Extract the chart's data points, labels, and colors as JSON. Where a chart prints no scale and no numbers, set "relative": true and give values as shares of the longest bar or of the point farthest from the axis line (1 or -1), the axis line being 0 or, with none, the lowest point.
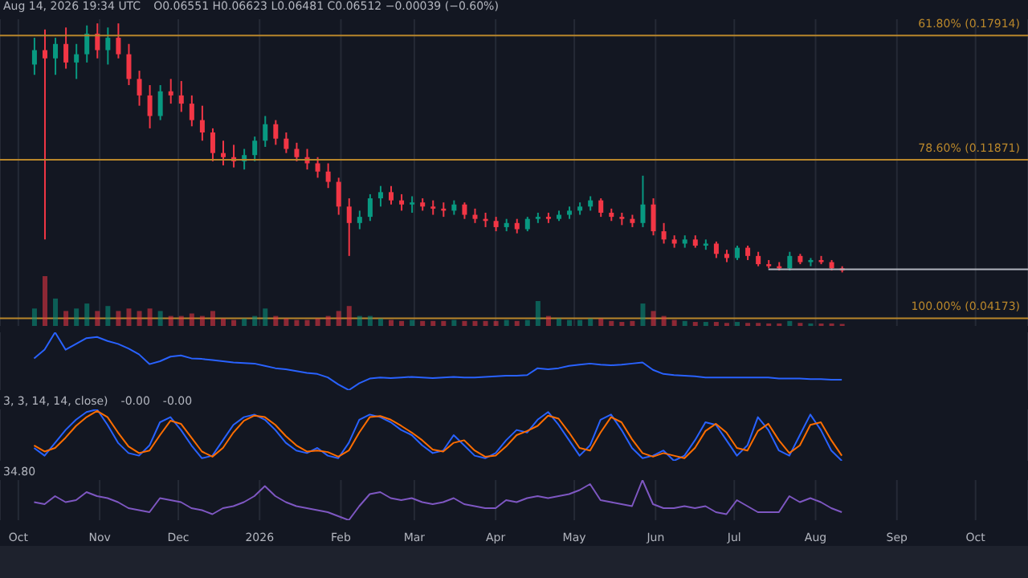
{
  "chart_data": [
    {
      "type": "candlestick",
      "annotations": [
        "Aug 14, 2026 19:34 UTC",
        "O0.06551 H0.06623 L0.06481 C0.06512 −0.00039 (−0.60%)"
      ],
      "x": [
        "2025-10-07",
        "2025-10-11",
        "2025-10-15",
        "2025-10-19",
        "2025-10-23",
        "2025-10-27",
        "2025-10-31",
        "2025-11-04",
        "2025-11-08",
        "2025-11-12",
        "2025-11-16",
        "2025-11-20",
        "2025-11-24",
        "2025-11-28",
        "2025-12-02",
        "2025-12-06",
        "2025-12-10",
        "2025-12-14",
        "2025-12-18",
        "2025-12-22",
        "2025-12-26",
        "2025-12-30",
        "2026-01-03",
        "2026-01-07",
        "2026-01-11",
        "2026-01-15",
        "2026-01-19",
        "2026-01-23",
        "2026-01-27",
        "2026-01-31",
        "2026-02-04",
        "2026-02-08",
        "2026-02-12",
        "2026-02-16",
        "2026-02-20",
        "2026-02-24",
        "2026-02-28",
        "2026-03-04",
        "2026-03-08",
        "2026-03-12",
        "2026-03-16",
        "2026-03-20",
        "2026-03-24",
        "2026-03-28",
        "2026-04-01",
        "2026-04-05",
        "2026-04-09",
        "2026-04-13",
        "2026-04-17",
        "2026-04-21",
        "2026-04-25",
        "2026-04-29",
        "2026-05-03",
        "2026-05-07",
        "2026-05-11",
        "2026-05-15",
        "2026-05-19",
        "2026-05-23",
        "2026-05-27",
        "2026-05-31",
        "2026-06-04",
        "2026-06-08",
        "2026-06-12",
        "2026-06-16",
        "2026-06-20",
        "2026-06-24",
        "2026-06-28",
        "2026-07-02",
        "2026-07-06",
        "2026-07-10",
        "2026-07-14",
        "2026-07-18",
        "2026-07-22",
        "2026-07-26",
        "2026-07-30",
        "2026-08-03",
        "2026-08-07",
        "2026-08-11"
      ],
      "ohlc": [
        [
          0.165,
          0.178,
          0.16,
          0.172
        ],
        [
          0.172,
          0.182,
          0.08,
          0.168
        ],
        [
          0.168,
          0.178,
          0.16,
          0.175
        ],
        [
          0.175,
          0.183,
          0.163,
          0.166
        ],
        [
          0.166,
          0.175,
          0.158,
          0.17
        ],
        [
          0.17,
          0.184,
          0.166,
          0.18
        ],
        [
          0.18,
          0.185,
          0.168,
          0.172
        ],
        [
          0.172,
          0.183,
          0.165,
          0.178
        ],
        [
          0.178,
          0.185,
          0.168,
          0.17
        ],
        [
          0.17,
          0.175,
          0.155,
          0.158
        ],
        [
          0.158,
          0.162,
          0.145,
          0.15
        ],
        [
          0.15,
          0.155,
          0.134,
          0.14
        ],
        [
          0.14,
          0.155,
          0.138,
          0.152
        ],
        [
          0.152,
          0.158,
          0.146,
          0.15
        ],
        [
          0.15,
          0.157,
          0.142,
          0.146
        ],
        [
          0.146,
          0.15,
          0.135,
          0.138
        ],
        [
          0.138,
          0.145,
          0.128,
          0.132
        ],
        [
          0.132,
          0.134,
          0.118,
          0.122
        ],
        [
          0.122,
          0.128,
          0.116,
          0.12
        ],
        [
          0.12,
          0.126,
          0.115,
          0.118
        ],
        [
          0.118,
          0.124,
          0.114,
          0.121
        ],
        [
          0.121,
          0.13,
          0.118,
          0.128
        ],
        [
          0.128,
          0.14,
          0.125,
          0.136
        ],
        [
          0.136,
          0.138,
          0.126,
          0.129
        ],
        [
          0.129,
          0.132,
          0.122,
          0.124
        ],
        [
          0.124,
          0.127,
          0.118,
          0.12
        ],
        [
          0.12,
          0.124,
          0.114,
          0.117
        ],
        [
          0.117,
          0.12,
          0.11,
          0.113
        ],
        [
          0.113,
          0.117,
          0.105,
          0.108
        ],
        [
          0.108,
          0.11,
          0.092,
          0.096
        ],
        [
          0.096,
          0.1,
          0.072,
          0.088
        ],
        [
          0.088,
          0.094,
          0.085,
          0.091
        ],
        [
          0.091,
          0.102,
          0.089,
          0.1
        ],
        [
          0.1,
          0.106,
          0.096,
          0.103
        ],
        [
          0.103,
          0.106,
          0.097,
          0.099
        ],
        [
          0.099,
          0.102,
          0.094,
          0.097
        ],
        [
          0.097,
          0.101,
          0.093,
          0.098
        ],
        [
          0.098,
          0.1,
          0.094,
          0.096
        ],
        [
          0.096,
          0.099,
          0.092,
          0.095
        ],
        [
          0.095,
          0.098,
          0.091,
          0.094
        ],
        [
          0.094,
          0.099,
          0.092,
          0.097
        ],
        [
          0.097,
          0.098,
          0.09,
          0.092
        ],
        [
          0.092,
          0.095,
          0.088,
          0.09
        ],
        [
          0.09,
          0.093,
          0.086,
          0.089
        ],
        [
          0.089,
          0.091,
          0.084,
          0.086
        ],
        [
          0.086,
          0.09,
          0.084,
          0.088
        ],
        [
          0.088,
          0.09,
          0.083,
          0.085
        ],
        [
          0.085,
          0.091,
          0.084,
          0.09
        ],
        [
          0.09,
          0.093,
          0.088,
          0.091
        ],
        [
          0.091,
          0.093,
          0.088,
          0.09
        ],
        [
          0.09,
          0.094,
          0.089,
          0.092
        ],
        [
          0.092,
          0.096,
          0.09,
          0.094
        ],
        [
          0.094,
          0.098,
          0.092,
          0.096
        ],
        [
          0.096,
          0.101,
          0.094,
          0.099
        ],
        [
          0.099,
          0.1,
          0.091,
          0.093
        ],
        [
          0.093,
          0.095,
          0.089,
          0.091
        ],
        [
          0.091,
          0.093,
          0.087,
          0.09
        ],
        [
          0.09,
          0.092,
          0.086,
          0.088
        ],
        [
          0.088,
          0.111,
          0.086,
          0.097
        ],
        [
          0.097,
          0.1,
          0.082,
          0.084
        ],
        [
          0.084,
          0.088,
          0.078,
          0.08
        ],
        [
          0.08,
          0.082,
          0.076,
          0.078
        ],
        [
          0.078,
          0.082,
          0.076,
          0.08
        ],
        [
          0.08,
          0.082,
          0.076,
          0.077
        ],
        [
          0.077,
          0.08,
          0.075,
          0.078
        ],
        [
          0.078,
          0.079,
          0.071,
          0.073
        ],
        [
          0.073,
          0.075,
          0.069,
          0.071
        ],
        [
          0.071,
          0.077,
          0.07,
          0.076
        ],
        [
          0.076,
          0.077,
          0.07,
          0.072
        ],
        [
          0.072,
          0.074,
          0.067,
          0.068
        ],
        [
          0.068,
          0.07,
          0.066,
          0.067
        ],
        [
          0.067,
          0.069,
          0.065,
          0.066
        ],
        [
          0.066,
          0.074,
          0.065,
          0.072
        ],
        [
          0.072,
          0.073,
          0.068,
          0.069
        ],
        [
          0.069,
          0.071,
          0.067,
          0.07
        ],
        [
          0.07,
          0.072,
          0.068,
          0.069
        ],
        [
          0.069,
          0.07,
          0.065,
          0.066
        ],
        [
          0.066,
          0.067,
          0.064,
          0.065
        ]
      ],
      "colors": [
        "#089981",
        "#f23645",
        "#089981",
        "#f23645",
        "#089981",
        "#089981",
        "#f23645",
        "#089981",
        "#f23645",
        "#f23645",
        "#f23645",
        "#f23645",
        "#089981",
        "#f23645",
        "#f23645",
        "#f23645",
        "#f23645",
        "#f23645",
        "#f23645",
        "#f23645",
        "#089981",
        "#089981",
        "#089981",
        "#f23645",
        "#f23645",
        "#f23645",
        "#f23645",
        "#f23645",
        "#f23645",
        "#f23645",
        "#f23645",
        "#089981",
        "#089981",
        "#089981",
        "#f23645",
        "#f23645",
        "#089981",
        "#f23645",
        "#f23645",
        "#f23645",
        "#089981",
        "#f23645",
        "#f23645",
        "#f23645",
        "#f23645",
        "#089981",
        "#f23645",
        "#089981",
        "#089981",
        "#f23645",
        "#089981",
        "#089981",
        "#089981",
        "#089981",
        "#f23645",
        "#f23645",
        "#f23645",
        "#f23645",
        "#089981",
        "#f23645",
        "#f23645",
        "#f23645",
        "#089981",
        "#f23645",
        "#089981",
        "#f23645",
        "#f23645",
        "#089981",
        "#f23645",
        "#f23645",
        "#f23645",
        "#f23645",
        "#089981",
        "#f23645",
        "#089981",
        "#f23645",
        "#f23645",
        "#f23645"
      ],
      "series": [
        {
          "type": "line",
          "color": "#b2b5be",
          "x": [
            "2026-07-14",
            "2026-10-21"
          ],
          "values": [
            0.0655,
            0.0655
          ]
        }
      ],
      "ylim": [
        0.038,
        0.187
      ],
      "xlim": [
        "2025-09-24",
        "2026-10-21"
      ],
      "xticks": [
        {
          "value": "2025-10-01",
          "label": null
        },
        {
          "value": "2025-11-01",
          "label": null
        },
        {
          "value": "2025-12-01",
          "label": null
        },
        {
          "value": "2026-01-01",
          "label": null
        },
        {
          "value": "2026-02-01",
          "label": null
        },
        {
          "value": "2026-03-01",
          "label": null
        },
        {
          "value": "2026-04-01",
          "label": null
        },
        {
          "value": "2026-05-01",
          "label": null
        },
        {
          "value": "2026-06-01",
          "label": null
        },
        {
          "value": "2026-07-01",
          "label": null
        },
        {
          "value": "2026-08-01",
          "label": null
        },
        {
          "value": "2026-09-01",
          "label": null
        },
        {
          "value": "2026-10-01",
          "label": null
        }
      ],
      "ref_lines": [
        {
          "axis": "y",
          "value": 0.17914,
          "label": "61.80% (0.17914)",
          "color": "#b8862b"
        },
        {
          "axis": "y",
          "value": 0.11871,
          "label": "78.60% (0.11871)",
          "color": "#b8862b"
        },
        {
          "axis": "y",
          "value": 0.04173,
          "label": "100.00% (0.04173)",
          "color": "#b8862b"
        }
      ],
      "grid": "x",
      "tick_labels": false
    },
    {
      "type": "bar",
      "relative": true,
      "x": [
        "2025-10-07",
        "2025-10-11",
        "2025-10-15",
        "2025-10-19",
        "2025-10-23",
        "2025-10-27",
        "2025-10-31",
        "2025-11-04",
        "2025-11-08",
        "2025-11-12",
        "2025-11-16",
        "2025-11-20",
        "2025-11-24",
        "2025-11-28",
        "2025-12-02",
        "2025-12-06",
        "2025-12-10",
        "2025-12-14",
        "2025-12-18",
        "2025-12-22",
        "2025-12-26",
        "2025-12-30",
        "2026-01-03",
        "2026-01-07",
        "2026-01-11",
        "2026-01-15",
        "2026-01-19",
        "2026-01-23",
        "2026-01-27",
        "2026-01-31",
        "2026-02-04",
        "2026-02-08",
        "2026-02-12",
        "2026-02-16",
        "2026-02-20",
        "2026-02-24",
        "2026-02-28",
        "2026-03-04",
        "2026-03-08",
        "2026-03-12",
        "2026-03-16",
        "2026-03-20",
        "2026-03-24",
        "2026-03-28",
        "2026-04-01",
        "2026-04-05",
        "2026-04-09",
        "2026-04-13",
        "2026-04-17",
        "2026-04-21",
        "2026-04-25",
        "2026-04-29",
        "2026-05-03",
        "2026-05-07",
        "2026-05-11",
        "2026-05-15",
        "2026-05-19",
        "2026-05-23",
        "2026-05-27",
        "2026-05-31",
        "2026-06-04",
        "2026-06-08",
        "2026-06-12",
        "2026-06-16",
        "2026-06-20",
        "2026-06-24",
        "2026-06-28",
        "2026-07-02",
        "2026-07-06",
        "2026-07-10",
        "2026-07-14",
        "2026-07-18",
        "2026-07-22",
        "2026-07-26",
        "2026-07-30",
        "2026-08-03",
        "2026-08-07",
        "2026-08-11"
      ],
      "values": [
        0.35,
        1,
        0.55,
        0.3,
        0.35,
        0.45,
        0.3,
        0.4,
        0.3,
        0.35,
        0.3,
        0.35,
        0.3,
        0.2,
        0.2,
        0.25,
        0.2,
        0.3,
        0.15,
        0.12,
        0.15,
        0.2,
        0.35,
        0.2,
        0.15,
        0.12,
        0.12,
        0.15,
        0.2,
        0.3,
        0.4,
        0.2,
        0.2,
        0.15,
        0.12,
        0.1,
        0.12,
        0.1,
        0.1,
        0.1,
        0.12,
        0.1,
        0.1,
        0.1,
        0.1,
        0.12,
        0.1,
        0.12,
        0.5,
        0.2,
        0.15,
        0.12,
        0.12,
        0.15,
        0.15,
        0.1,
        0.08,
        0.1,
        0.45,
        0.3,
        0.2,
        0.12,
        0.1,
        0.08,
        0.08,
        0.08,
        0.06,
        0.08,
        0.06,
        0.06,
        0.05,
        0.05,
        0.1,
        0.06,
        0.05,
        0.05,
        0.05,
        0.04
      ],
      "colors": [
        "#089981",
        "#f23645",
        "#089981",
        "#f23645",
        "#089981",
        "#089981",
        "#f23645",
        "#089981",
        "#f23645",
        "#f23645",
        "#f23645",
        "#f23645",
        "#089981",
        "#f23645",
        "#f23645",
        "#f23645",
        "#f23645",
        "#f23645",
        "#f23645",
        "#f23645",
        "#089981",
        "#089981",
        "#089981",
        "#f23645",
        "#f23645",
        "#f23645",
        "#f23645",
        "#f23645",
        "#f23645",
        "#f23645",
        "#f23645",
        "#089981",
        "#089981",
        "#089981",
        "#f23645",
        "#f23645",
        "#089981",
        "#f23645",
        "#f23645",
        "#f23645",
        "#089981",
        "#f23645",
        "#f23645",
        "#f23645",
        "#f23645",
        "#089981",
        "#f23645",
        "#089981",
        "#089981",
        "#f23645",
        "#089981",
        "#089981",
        "#089981",
        "#089981",
        "#f23645",
        "#f23645",
        "#f23645",
        "#f23645",
        "#089981",
        "#f23645",
        "#f23645",
        "#f23645",
        "#089981",
        "#f23645",
        "#089981",
        "#f23645",
        "#f23645",
        "#089981",
        "#f23645",
        "#f23645",
        "#f23645",
        "#f23645",
        "#089981",
        "#f23645",
        "#089981",
        "#f23645",
        "#f23645",
        "#f23645"
      ],
      "xlim": [
        "2025-09-24",
        "2026-10-21"
      ],
      "tick_labels": false
    },
    {
      "type": "line",
      "relative": true,
      "x": [
        "2025-10-07",
        "2025-10-11",
        "2025-10-15",
        "2025-10-19",
        "2025-10-23",
        "2025-10-27",
        "2025-10-31",
        "2025-11-04",
        "2025-11-08",
        "2025-11-12",
        "2025-11-16",
        "2025-11-20",
        "2025-11-24",
        "2025-11-28",
        "2025-12-02",
        "2025-12-06",
        "2025-12-10",
        "2025-12-14",
        "2025-12-18",
        "2025-12-22",
        "2025-12-26",
        "2025-12-30",
        "2026-01-03",
        "2026-01-07",
        "2026-01-11",
        "2026-01-15",
        "2026-01-19",
        "2026-01-23",
        "2026-01-27",
        "2026-01-31",
        "2026-02-04",
        "2026-02-08",
        "2026-02-12",
        "2026-02-16",
        "2026-02-20",
        "2026-02-24",
        "2026-02-28",
        "2026-03-04",
        "2026-03-08",
        "2026-03-12",
        "2026-03-16",
        "2026-03-20",
        "2026-03-24",
        "2026-03-28",
        "2026-04-01",
        "2026-04-05",
        "2026-04-09",
        "2026-04-13",
        "2026-04-17",
        "2026-04-21",
        "2026-04-25",
        "2026-04-29",
        "2026-05-03",
        "2026-05-07",
        "2026-05-11",
        "2026-05-15",
        "2026-05-19",
        "2026-05-23",
        "2026-05-27",
        "2026-05-31",
        "2026-06-04",
        "2026-06-08",
        "2026-06-12",
        "2026-06-16",
        "2026-06-20",
        "2026-06-24",
        "2026-06-28",
        "2026-07-02",
        "2026-07-06",
        "2026-07-10",
        "2026-07-14",
        "2026-07-18",
        "2026-07-22",
        "2026-07-26",
        "2026-07-30",
        "2026-08-03",
        "2026-08-07",
        "2026-08-11"
      ],
      "series": [
        {
          "color": "#2962ff",
          "values": [
            0.55,
            0.7,
            1,
            0.7,
            0.8,
            0.9,
            0.92,
            0.85,
            0.8,
            0.72,
            0.62,
            0.45,
            0.5,
            0.58,
            0.6,
            0.55,
            0.54,
            0.52,
            0.5,
            0.48,
            0.47,
            0.46,
            0.42,
            0.38,
            0.36,
            0.33,
            0.3,
            0.28,
            0.22,
            0.1,
            0,
            0.12,
            0.2,
            0.22,
            0.21,
            0.22,
            0.23,
            0.22,
            0.21,
            0.22,
            0.23,
            0.22,
            0.22,
            0.23,
            0.24,
            0.25,
            0.25,
            0.26,
            0.38,
            0.36,
            0.38,
            0.42,
            0.44,
            0.46,
            0.44,
            0.43,
            0.44,
            0.46,
            0.48,
            0.35,
            0.28,
            0.26,
            0.25,
            0.24,
            0.22,
            0.22,
            0.22,
            0.22,
            0.22,
            0.22,
            0.22,
            0.2,
            0.2,
            0.2,
            0.19,
            0.19,
            0.18,
            0.18
          ]
        }
      ],
      "xlim": [
        "2025-09-24",
        "2026-10-21"
      ],
      "grid": "x",
      "tick_labels": false
    },
    {
      "type": "line",
      "relative": true,
      "annotations": [
        "3, 3, 14, 14, close)",
        "-0.00",
        "-0.00"
      ],
      "x": [
        "2025-10-07",
        "2025-10-11",
        "2025-10-15",
        "2025-10-19",
        "2025-10-23",
        "2025-10-27",
        "2025-10-31",
        "2025-11-04",
        "2025-11-08",
        "2025-11-12",
        "2025-11-16",
        "2025-11-20",
        "2025-11-24",
        "2025-11-28",
        "2025-12-02",
        "2025-12-06",
        "2025-12-10",
        "2025-12-14",
        "2025-12-18",
        "2025-12-22",
        "2025-12-26",
        "2025-12-30",
        "2026-01-03",
        "2026-01-07",
        "2026-01-11",
        "2026-01-15",
        "2026-01-19",
        "2026-01-23",
        "2026-01-27",
        "2026-01-31",
        "2026-02-04",
        "2026-02-08",
        "2026-02-12",
        "2026-02-16",
        "2026-02-20",
        "2026-02-24",
        "2026-02-28",
        "2026-03-04",
        "2026-03-08",
        "2026-03-12",
        "2026-03-16",
        "2026-03-20",
        "2026-03-24",
        "2026-03-28",
        "2026-04-01",
        "2026-04-05",
        "2026-04-09",
        "2026-04-13",
        "2026-04-17",
        "2026-04-21",
        "2026-04-25",
        "2026-04-29",
        "2026-05-03",
        "2026-05-07",
        "2026-05-11",
        "2026-05-15",
        "2026-05-19",
        "2026-05-23",
        "2026-05-27",
        "2026-05-31",
        "2026-06-04",
        "2026-06-08",
        "2026-06-12",
        "2026-06-16",
        "2026-06-20",
        "2026-06-24",
        "2026-06-28",
        "2026-07-02",
        "2026-07-06",
        "2026-07-10",
        "2026-07-14",
        "2026-07-18",
        "2026-07-22",
        "2026-07-26",
        "2026-07-30",
        "2026-08-03",
        "2026-08-07",
        "2026-08-11"
      ],
      "series": [
        {
          "color": "#2962ff",
          "values": [
            0.25,
            0.1,
            0.35,
            0.6,
            0.8,
            0.95,
            1,
            0.7,
            0.35,
            0.15,
            0.1,
            0.3,
            0.75,
            0.85,
            0.6,
            0.3,
            0.05,
            0.1,
            0.4,
            0.7,
            0.85,
            0.9,
            0.8,
            0.6,
            0.35,
            0.2,
            0.15,
            0.25,
            0.1,
            0.05,
            0.35,
            0.8,
            0.9,
            0.85,
            0.75,
            0.6,
            0.5,
            0.3,
            0.15,
            0.2,
            0.5,
            0.3,
            0.1,
            0.05,
            0.15,
            0.4,
            0.6,
            0.55,
            0.8,
            0.95,
            0.7,
            0.4,
            0.1,
            0.3,
            0.8,
            0.9,
            0.6,
            0.25,
            0.05,
            0.1,
            0.2,
            0,
            0.1,
            0.4,
            0.75,
            0.7,
            0.4,
            0.1,
            0.3,
            0.85,
            0.6,
            0.2,
            0.1,
            0.5,
            0.9,
            0.6,
            0.2,
            0
          ]
        },
        {
          "color": "#ff6d00",
          "values": [
            0.3,
            0.18,
            0.25,
            0.45,
            0.68,
            0.85,
            0.97,
            0.85,
            0.55,
            0.28,
            0.15,
            0.2,
            0.5,
            0.78,
            0.72,
            0.45,
            0.18,
            0.08,
            0.25,
            0.55,
            0.78,
            0.88,
            0.85,
            0.7,
            0.48,
            0.3,
            0.18,
            0.2,
            0.17,
            0.08,
            0.2,
            0.55,
            0.85,
            0.87,
            0.8,
            0.68,
            0.55,
            0.4,
            0.22,
            0.18,
            0.35,
            0.4,
            0.2,
            0.08,
            0.1,
            0.28,
            0.5,
            0.58,
            0.68,
            0.88,
            0.82,
            0.55,
            0.25,
            0.2,
            0.55,
            0.85,
            0.75,
            0.42,
            0.15,
            0.08,
            0.15,
            0.1,
            0.05,
            0.25,
            0.58,
            0.72,
            0.55,
            0.25,
            0.2,
            0.58,
            0.72,
            0.4,
            0.15,
            0.3,
            0.7,
            0.75,
            0.4,
            0.1
          ]
        }
      ],
      "xlim": [
        "2025-09-24",
        "2026-10-21"
      ],
      "grid": "x",
      "tick_labels": false
    },
    {
      "type": "line",
      "relative": true,
      "annotations": [
        "34.80"
      ],
      "x": [
        "2025-10-07",
        "2025-10-11",
        "2025-10-15",
        "2025-10-19",
        "2025-10-23",
        "2025-10-27",
        "2025-10-31",
        "2025-11-04",
        "2025-11-08",
        "2025-11-12",
        "2025-11-16",
        "2025-11-20",
        "2025-11-24",
        "2025-11-28",
        "2025-12-02",
        "2025-12-06",
        "2025-12-10",
        "2025-12-14",
        "2025-12-18",
        "2025-12-22",
        "2025-12-26",
        "2025-12-30",
        "2026-01-03",
        "2026-01-07",
        "2026-01-11",
        "2026-01-15",
        "2026-01-19",
        "2026-01-23",
        "2026-01-27",
        "2026-01-31",
        "2026-02-04",
        "2026-02-08",
        "2026-02-12",
        "2026-02-16",
        "2026-02-20",
        "2026-02-24",
        "2026-02-28",
        "2026-03-04",
        "2026-03-08",
        "2026-03-12",
        "2026-03-16",
        "2026-03-20",
        "2026-03-24",
        "2026-03-28",
        "2026-04-01",
        "2026-04-05",
        "2026-04-09",
        "2026-04-13",
        "2026-04-17",
        "2026-04-21",
        "2026-04-25",
        "2026-04-29",
        "2026-05-03",
        "2026-05-07",
        "2026-05-11",
        "2026-05-15",
        "2026-05-19",
        "2026-05-23",
        "2026-05-27",
        "2026-05-31",
        "2026-06-04",
        "2026-06-08",
        "2026-06-12",
        "2026-06-16",
        "2026-06-20",
        "2026-06-24",
        "2026-06-28",
        "2026-07-02",
        "2026-07-06",
        "2026-07-10",
        "2026-07-14",
        "2026-07-18",
        "2026-07-22",
        "2026-07-26",
        "2026-07-30",
        "2026-08-03",
        "2026-08-07",
        "2026-08-11"
      ],
      "series": [
        {
          "color": "#7e57c2",
          "values": [
            0.45,
            0.4,
            0.6,
            0.45,
            0.5,
            0.7,
            0.6,
            0.55,
            0.45,
            0.3,
            0.25,
            0.2,
            0.55,
            0.5,
            0.45,
            0.3,
            0.25,
            0.15,
            0.3,
            0.35,
            0.45,
            0.6,
            0.85,
            0.6,
            0.45,
            0.35,
            0.3,
            0.25,
            0.2,
            0.1,
            0,
            0.35,
            0.65,
            0.7,
            0.55,
            0.5,
            0.55,
            0.45,
            0.4,
            0.45,
            0.55,
            0.4,
            0.35,
            0.3,
            0.3,
            0.5,
            0.45,
            0.55,
            0.6,
            0.55,
            0.6,
            0.65,
            0.75,
            0.9,
            0.5,
            0.45,
            0.4,
            0.35,
            1,
            0.4,
            0.3,
            0.3,
            0.35,
            0.3,
            0.35,
            0.2,
            0.15,
            0.5,
            0.35,
            0.2,
            0.2,
            0.2,
            0.6,
            0.45,
            0.55,
            0.45,
            0.3,
            0.2
          ]
        }
      ],
      "xlim": [
        "2025-09-24",
        "2026-10-21"
      ],
      "xticks": [
        {
          "value": "2025-10-01",
          "label": "Oct"
        },
        {
          "value": "2025-11-01",
          "label": "Nov"
        },
        {
          "value": "2025-12-01",
          "label": "Dec"
        },
        {
          "value": "2026-01-01",
          "label": "2026"
        },
        {
          "value": "2026-02-01",
          "label": "Feb"
        },
        {
          "value": "2026-03-01",
          "label": "Mar"
        },
        {
          "value": "2026-04-01",
          "label": "Apr"
        },
        {
          "value": "2026-05-01",
          "label": "May"
        },
        {
          "value": "2026-06-01",
          "label": "Jun"
        },
        {
          "value": "2026-07-01",
          "label": "Jul"
        },
        {
          "value": "2026-08-01",
          "label": "Aug"
        },
        {
          "value": "2026-09-01",
          "label": "Sep"
        },
        {
          "value": "2026-10-01",
          "label": "Oct"
        }
      ],
      "grid": "x",
      "tick_labels": "x"
    }
  ]
}
